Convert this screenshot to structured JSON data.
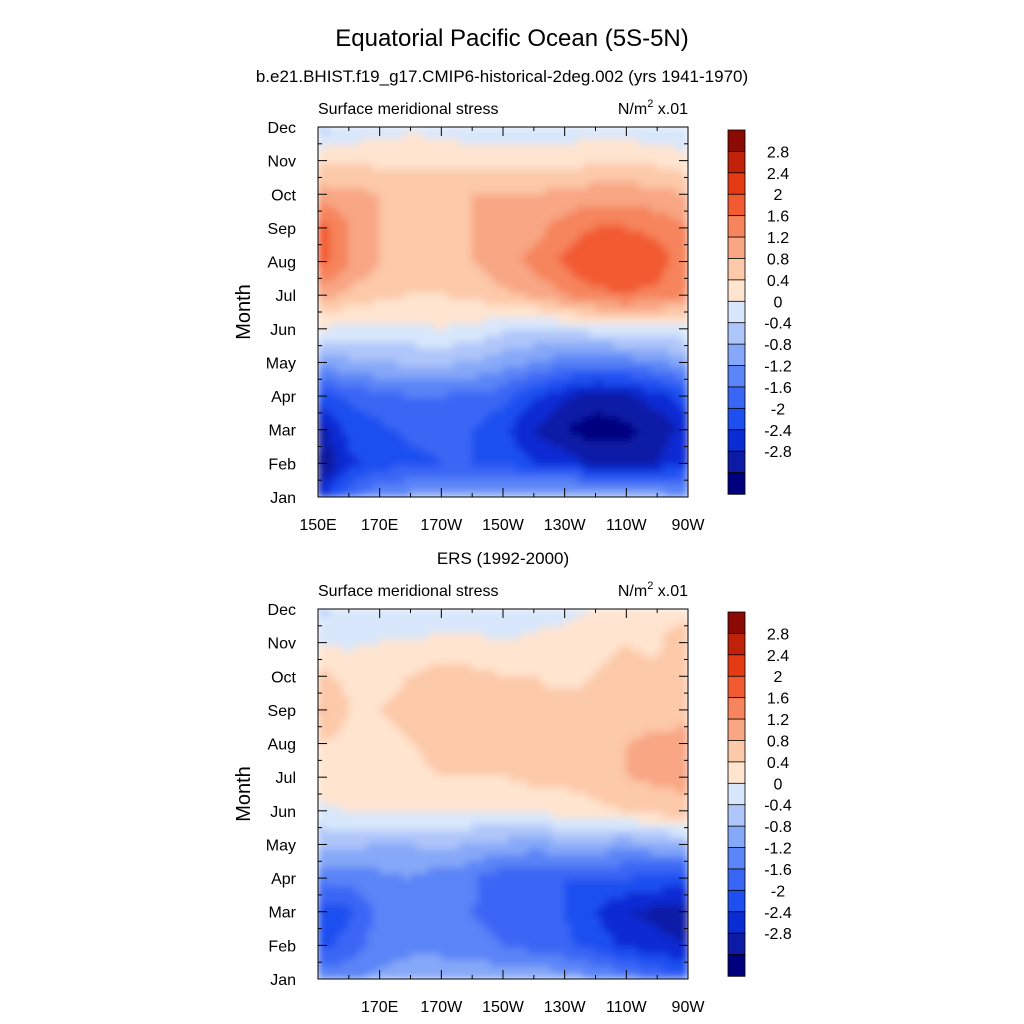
{
  "figure": {
    "title": "Equatorial Pacific Ocean (5S-5N)",
    "subtitle": "b.e21.BHIST.f19_g17.CMIP6-historical-2deg.002 (yrs 1941-1970)"
  },
  "colorbar": {
    "levels": [
      -3.2,
      -2.8,
      -2.4,
      -2.0,
      -1.6,
      -1.2,
      -0.8,
      -0.4,
      0,
      0.4,
      0.8,
      1.2,
      1.6,
      2.0,
      2.4,
      2.8,
      3.2
    ],
    "colors": [
      "#00007f",
      "#0d1aa6",
      "#0a2cd4",
      "#1e4ff0",
      "#3a66f5",
      "#5a84f7",
      "#86a8f8",
      "#afc6fa",
      "#d8e7fb",
      "#ffe4cf",
      "#fcc9a9",
      "#f8a684",
      "#f6845c",
      "#f25a32",
      "#e53b14",
      "#bf2208",
      "#8c0a04"
    ],
    "labels": [
      "2.8",
      "2.4",
      "2",
      "1.6",
      "1.2",
      "0.8",
      "0.4",
      "0",
      "-0.4",
      "-0.8",
      "-1.2",
      "-1.6",
      "-2",
      "-2.4",
      "-2.8"
    ]
  },
  "chart_data": [
    {
      "type": "heatmap",
      "title": "",
      "left_label": "Surface meridional stress",
      "right_label_base": "N/m",
      "right_label_sup": "2",
      "right_label_tail": " x.01",
      "ylabel": "Month",
      "xlabel": "",
      "x_ticks": [
        "150E",
        "170E",
        "170W",
        "150W",
        "130W",
        "110W",
        "90W"
      ],
      "x_tick_values": [
        150,
        170,
        190,
        210,
        230,
        250,
        270
      ],
      "y_ticks": [
        "Jan",
        "Feb",
        "Mar",
        "Apr",
        "May",
        "Jun",
        "Jul",
        "Aug",
        "Sep",
        "Oct",
        "Nov",
        "Dec"
      ],
      "xlim": [
        150,
        270
      ],
      "ylim": [
        1,
        12
      ],
      "x": [
        150,
        160,
        170,
        180,
        190,
        200,
        210,
        220,
        230,
        240,
        250,
        260,
        270
      ],
      "z": [
        [
          -2.2,
          -1.3,
          -0.9,
          -0.7,
          -0.6,
          -0.6,
          -0.6,
          -0.5,
          -0.3,
          -0.2,
          -0.3,
          -0.6,
          -0.8
        ],
        [
          -3.0,
          -2.1,
          -1.8,
          -1.7,
          -1.6,
          -1.6,
          -1.7,
          -2.0,
          -2.2,
          -2.5,
          -2.6,
          -2.4,
          -2.0
        ],
        [
          -2.6,
          -1.9,
          -1.7,
          -1.5,
          -1.5,
          -1.6,
          -1.9,
          -2.4,
          -2.8,
          -3.0,
          -2.9,
          -2.7,
          -2.2
        ],
        [
          -1.9,
          -1.5,
          -1.3,
          -1.2,
          -1.2,
          -1.3,
          -1.4,
          -1.9,
          -2.3,
          -2.6,
          -2.5,
          -2.2,
          -1.8
        ],
        [
          -0.6,
          -0.5,
          -0.4,
          -0.3,
          -0.3,
          -0.4,
          -0.6,
          -0.8,
          -1.0,
          -1.1,
          -1.0,
          -0.8,
          -0.6
        ],
        [
          0.4,
          0.3,
          0.3,
          0.3,
          0.4,
          0.3,
          0.1,
          0.0,
          0.1,
          0.2,
          0.3,
          0.3,
          0.3
        ],
        [
          1.4,
          1.1,
          0.9,
          0.8,
          0.8,
          0.9,
          1.1,
          1.3,
          1.6,
          1.9,
          2.0,
          1.9,
          1.6
        ],
        [
          2.3,
          1.6,
          1.2,
          1.1,
          1.1,
          1.2,
          1.5,
          1.7,
          2.1,
          2.4,
          2.4,
          2.2,
          1.8
        ],
        [
          2.2,
          1.6,
          1.2,
          1.1,
          1.1,
          1.2,
          1.2,
          1.4,
          1.8,
          2.0,
          2.0,
          1.9,
          1.6
        ],
        [
          1.4,
          1.3,
          1.2,
          1.2,
          1.2,
          1.2,
          1.2,
          1.2,
          1.3,
          1.4,
          1.4,
          1.3,
          1.2
        ],
        [
          0.7,
          0.7,
          0.7,
          0.7,
          0.6,
          0.6,
          0.6,
          0.6,
          0.6,
          0.7,
          0.8,
          0.7,
          0.5
        ],
        [
          -0.2,
          0.1,
          0.2,
          0.3,
          0.3,
          0.2,
          0.1,
          0.1,
          0.2,
          0.2,
          0.1,
          0.1,
          0.0
        ]
      ]
    },
    {
      "type": "heatmap",
      "title": "ERS (1992-2000)",
      "left_label": "Surface meridional stress",
      "right_label_base": "N/m",
      "right_label_sup": "2",
      "right_label_tail": " x.01",
      "ylabel": "Month",
      "xlabel": "",
      "x_ticks": [
        "170E",
        "170W",
        "150W",
        "130W",
        "110W",
        "90W"
      ],
      "x_tick_values": [
        170,
        190,
        210,
        230,
        250,
        270
      ],
      "y_ticks": [
        "Jan",
        "Feb",
        "Mar",
        "Apr",
        "May",
        "Jun",
        "Jul",
        "Aug",
        "Sep",
        "Oct",
        "Nov",
        "Dec"
      ],
      "xlim": [
        150,
        270
      ],
      "ylim": [
        1,
        12
      ],
      "x": [
        150,
        160,
        170,
        180,
        190,
        200,
        210,
        220,
        230,
        240,
        250,
        260,
        270
      ],
      "z": [
        [
          -1.0,
          -0.9,
          -0.7,
          -0.6,
          -0.6,
          -0.5,
          -0.5,
          -0.5,
          -0.6,
          -0.8,
          -1.0,
          -1.3,
          -1.5
        ],
        [
          -1.7,
          -1.5,
          -1.0,
          -0.9,
          -0.9,
          -1.1,
          -1.2,
          -1.4,
          -1.5,
          -1.8,
          -2.1,
          -2.3,
          -2.4
        ],
        [
          -1.8,
          -1.7,
          -1.1,
          -0.8,
          -1.0,
          -1.2,
          -1.3,
          -1.5,
          -1.6,
          -2.0,
          -2.4,
          -2.5,
          -2.6
        ],
        [
          -1.1,
          -1.0,
          -0.9,
          -0.8,
          -1.0,
          -1.1,
          -1.5,
          -1.5,
          -1.6,
          -1.6,
          -1.6,
          -1.7,
          -1.8
        ],
        [
          -0.3,
          -0.3,
          -0.4,
          -0.4,
          -0.3,
          -0.4,
          -0.5,
          -0.6,
          -0.5,
          -0.5,
          -0.6,
          -0.5,
          -0.4
        ],
        [
          0.3,
          0.4,
          0.5,
          0.5,
          0.5,
          0.4,
          0.4,
          0.5,
          0.6,
          0.7,
          0.8,
          1.0,
          1.1
        ],
        [
          0.7,
          0.7,
          0.7,
          0.7,
          0.8,
          0.8,
          0.8,
          0.9,
          0.9,
          1.0,
          1.2,
          1.3,
          1.3
        ],
        [
          0.8,
          0.7,
          0.7,
          0.8,
          0.9,
          0.8,
          0.9,
          1.0,
          1.0,
          1.1,
          1.2,
          1.3,
          1.3
        ],
        [
          1.3,
          0.8,
          0.8,
          0.9,
          0.9,
          0.8,
          0.9,
          0.9,
          0.9,
          0.9,
          1.0,
          1.0,
          1.1
        ],
        [
          0.9,
          0.7,
          0.7,
          0.8,
          1.0,
          0.9,
          0.8,
          0.8,
          0.7,
          0.8,
          0.9,
          0.9,
          1.0
        ],
        [
          0.4,
          0.3,
          0.4,
          0.4,
          0.5,
          0.5,
          0.4,
          0.5,
          0.5,
          0.7,
          0.8,
          0.7,
          1.2
        ],
        [
          -0.1,
          0.1,
          0.1,
          0.1,
          0.2,
          0.2,
          0.1,
          0.2,
          0.3,
          0.4,
          0.5,
          0.6,
          0.5
        ]
      ]
    }
  ]
}
